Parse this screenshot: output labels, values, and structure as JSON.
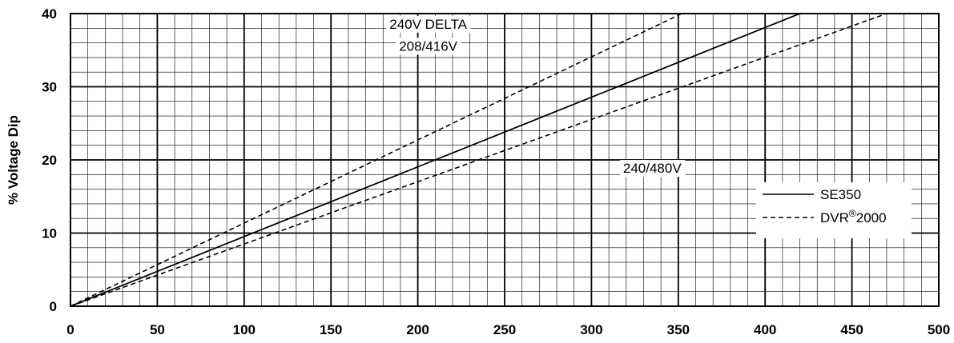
{
  "chart_data": {
    "type": "line",
    "title": "",
    "xlabel": "",
    "ylabel": "% Voltage Dip",
    "xlim": [
      0,
      500
    ],
    "ylim": [
      0,
      40
    ],
    "x_ticks": [
      "0",
      "50",
      "100",
      "150",
      "200",
      "250",
      "300",
      "350",
      "400",
      "450",
      "500"
    ],
    "y_ticks": [
      "0",
      "10",
      "20",
      "30",
      "40"
    ],
    "grid": true,
    "legend_position": "right",
    "legend": [
      {
        "label": "SE350",
        "style": "solid"
      },
      {
        "label": "DVR",
        "superscript": "®",
        "suffix": "2000",
        "style": "dashed"
      }
    ],
    "series": [
      {
        "group": "240V DELTA 208/416V",
        "model": "SE350",
        "style": "solid",
        "x": [
          0,
          420
        ],
        "y": [
          0,
          40
        ]
      },
      {
        "group": "240V DELTA 208/416V",
        "model": "DVR2000",
        "style": "dashed",
        "x": [
          0,
          352
        ],
        "y": [
          0,
          40
        ]
      },
      {
        "group": "240/480V",
        "model": "SE350",
        "style": "solid",
        "x": [
          0,
          420
        ],
        "y": [
          0,
          40
        ]
      },
      {
        "group": "240/480V",
        "model": "DVR2000",
        "style": "dashed",
        "x": [
          0,
          470
        ],
        "y": [
          0,
          40
        ]
      }
    ],
    "annotations": [
      {
        "text": "240V DELTA",
        "x": 206,
        "y": 38.6
      },
      {
        "text": "208/416V",
        "x": 206,
        "y": 35.6
      },
      {
        "text": "240/480V",
        "x": 335,
        "y": 18.9
      }
    ]
  }
}
